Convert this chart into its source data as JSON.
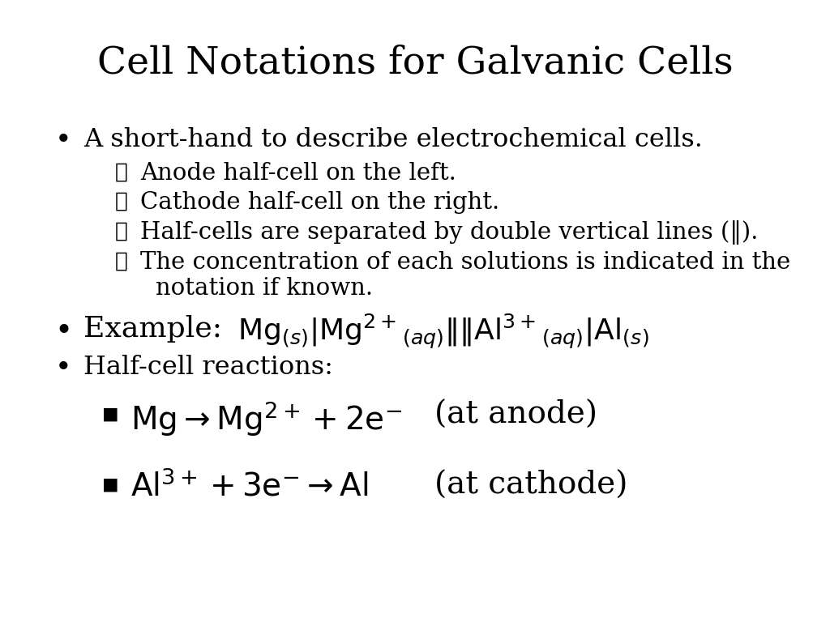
{
  "title": "Cell Notations for Galvanic Cells",
  "title_fontsize": 34,
  "bg_color": "#ffffff",
  "text_color": "#000000",
  "fig_width": 10.24,
  "fig_height": 7.68,
  "dpi": 100,
  "bullet1": "A short-hand to describe electrochemical cells.",
  "sub1": "Anode half-cell on the left.",
  "sub2": "Cathode half-cell on the right.",
  "sub3": "Half-cells are separated by double vertical lines (‖).",
  "sub4a": "The concentration of each solutions is indicated in the",
  "sub4b": "notation if known.",
  "bullet3": "Half-cell reactions:",
  "body_fontsize": 23,
  "sub_fontsize": 21,
  "example_fontsize": 26,
  "reaction_fontsize": 28,
  "anode_label": "(at anode)",
  "cathode_label": "(at cathode)"
}
